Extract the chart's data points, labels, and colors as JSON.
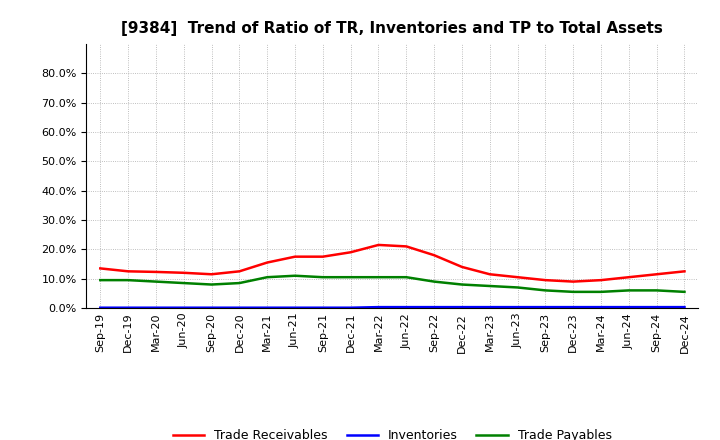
{
  "title": "[9384]  Trend of Ratio of TR, Inventories and TP to Total Assets",
  "x_labels": [
    "Sep-19",
    "Dec-19",
    "Mar-20",
    "Jun-20",
    "Sep-20",
    "Dec-20",
    "Mar-21",
    "Jun-21",
    "Sep-21",
    "Dec-21",
    "Mar-22",
    "Jun-22",
    "Sep-22",
    "Dec-22",
    "Mar-23",
    "Jun-23",
    "Sep-23",
    "Dec-23",
    "Mar-24",
    "Jun-24",
    "Sep-24",
    "Dec-24"
  ],
  "trade_receivables": [
    13.5,
    12.5,
    12.3,
    12.0,
    11.5,
    12.5,
    15.5,
    17.5,
    17.5,
    19.0,
    21.5,
    21.0,
    18.0,
    14.0,
    11.5,
    10.5,
    9.5,
    9.0,
    9.5,
    10.5,
    11.5,
    12.5
  ],
  "inventories": [
    0.1,
    0.1,
    0.1,
    0.1,
    0.1,
    0.1,
    0.1,
    0.1,
    0.1,
    0.1,
    0.3,
    0.3,
    0.3,
    0.3,
    0.3,
    0.3,
    0.3,
    0.3,
    0.3,
    0.3,
    0.3,
    0.3
  ],
  "trade_payables": [
    9.5,
    9.5,
    9.0,
    8.5,
    8.0,
    8.5,
    10.5,
    11.0,
    10.5,
    10.5,
    10.5,
    10.5,
    9.0,
    8.0,
    7.5,
    7.0,
    6.0,
    5.5,
    5.5,
    6.0,
    6.0,
    5.5
  ],
  "ylim": [
    0,
    90
  ],
  "yticks": [
    0,
    10,
    20,
    30,
    40,
    50,
    60,
    70,
    80
  ],
  "color_tr": "#FF0000",
  "color_inv": "#0000FF",
  "color_tp": "#008000",
  "background_color": "#FFFFFF",
  "grid_color": "#AAAAAA",
  "title_fontsize": 11,
  "legend_fontsize": 9,
  "tick_fontsize": 8
}
